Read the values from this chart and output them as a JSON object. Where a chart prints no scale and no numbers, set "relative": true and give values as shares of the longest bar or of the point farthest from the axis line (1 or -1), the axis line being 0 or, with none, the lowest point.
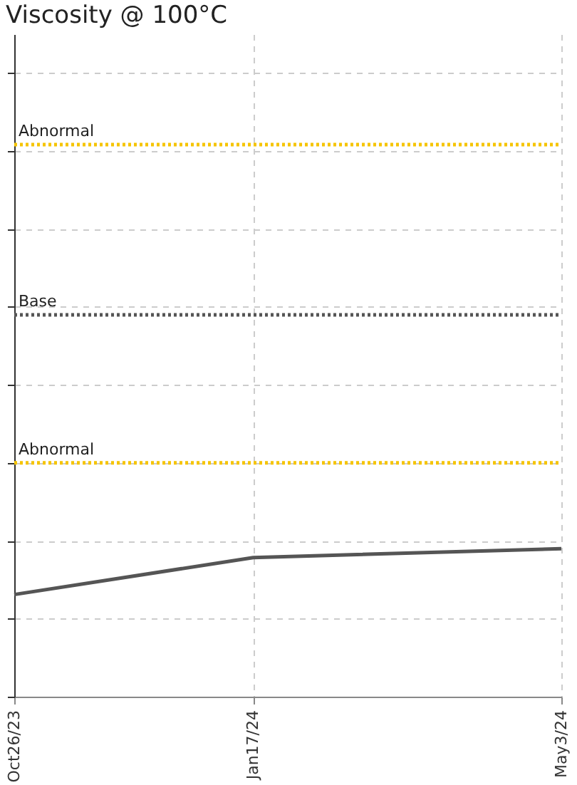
{
  "chart_data": {
    "type": "line",
    "title": "Viscosity @ 100°C",
    "relative": true,
    "x": [
      "2023-10-26",
      "2024-01-17",
      "2024-05-03"
    ],
    "xlim": [
      "2023-10-26",
      "2024-05-03"
    ],
    "xticks": [
      {
        "value": "2023-10-26",
        "label": "Oct26/23"
      },
      {
        "value": "2024-01-17",
        "label": "Jan17/24"
      },
      {
        "value": "2024-05-03",
        "label": "May3/24"
      }
    ],
    "series": [
      {
        "color": "#555555",
        "values": [
          0.69,
          0.94,
          1.0
        ]
      }
    ],
    "ref_lines": [
      {
        "axis": "y",
        "value": 3.73,
        "label": "Abnormal",
        "color": "#f5c400",
        "line_style": "dotted"
      },
      {
        "axis": "y",
        "value": 2.58,
        "label": "Base",
        "color": "#555555",
        "line_style": "dotted"
      },
      {
        "axis": "y",
        "value": 1.58,
        "label": "Abnormal",
        "color": "#f5c400",
        "line_style": "dotted"
      }
    ],
    "grid": true,
    "tick_labels": "x",
    "marker": "none",
    "line_style": "solid"
  }
}
